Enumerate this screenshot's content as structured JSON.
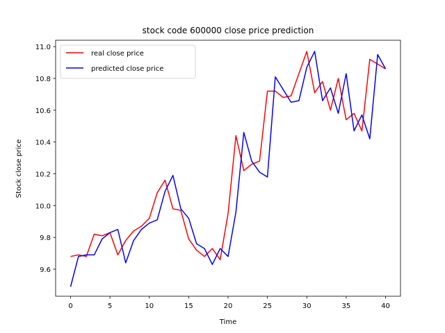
{
  "chart_data": {
    "type": "line",
    "title": "stock code 600000 close price prediction",
    "xlabel": "Time",
    "ylabel": "Stock close price",
    "xlim": [
      -1.9,
      41.9
    ],
    "ylim": [
      9.43,
      11.04
    ],
    "x_ticks": [
      0,
      5,
      10,
      15,
      20,
      25,
      30,
      35,
      40
    ],
    "y_ticks": [
      9.6,
      9.8,
      10.0,
      10.2,
      10.4,
      10.6,
      10.8,
      11.0
    ],
    "x_tick_labels": [
      "0",
      "5",
      "10",
      "15",
      "20",
      "25",
      "30",
      "35",
      "40"
    ],
    "y_tick_labels": [
      "9.6",
      "9.8",
      "10.0",
      "10.2",
      "10.4",
      "10.6",
      "10.8",
      "11.0"
    ],
    "grid": false,
    "legend_position": "upper-left",
    "x": [
      0,
      1,
      2,
      3,
      4,
      5,
      6,
      7,
      8,
      9,
      10,
      11,
      12,
      13,
      14,
      15,
      16,
      17,
      18,
      19,
      20,
      21,
      22,
      23,
      24,
      25,
      26,
      27,
      28,
      29,
      30,
      31,
      32,
      33,
      34,
      35,
      36,
      37,
      38,
      39,
      40
    ],
    "series": [
      {
        "name": "real close price",
        "color": "#ff0000",
        "values": [
          9.68,
          9.69,
          9.68,
          9.82,
          9.81,
          9.83,
          9.69,
          9.78,
          9.84,
          9.87,
          9.92,
          10.08,
          10.16,
          9.98,
          9.97,
          9.79,
          9.72,
          9.68,
          9.73,
          9.66,
          9.95,
          10.44,
          10.22,
          10.26,
          10.28,
          10.72,
          10.72,
          10.68,
          10.69,
          10.83,
          10.97,
          10.71,
          10.78,
          10.6,
          10.8,
          10.54,
          10.58,
          10.47,
          10.92,
          10.89,
          10.86
        ]
      },
      {
        "name": "predicted close price",
        "color": "#0000ff",
        "values": [
          9.49,
          9.68,
          9.69,
          9.69,
          9.79,
          9.83,
          9.85,
          9.64,
          9.78,
          9.85,
          9.89,
          9.91,
          10.09,
          10.19,
          9.98,
          9.92,
          9.76,
          9.73,
          9.63,
          9.73,
          9.68,
          9.96,
          10.46,
          10.28,
          10.21,
          10.18,
          10.81,
          10.73,
          10.65,
          10.66,
          10.87,
          10.97,
          10.66,
          10.74,
          10.58,
          10.83,
          10.47,
          10.57,
          10.42,
          10.95,
          10.86
        ]
      }
    ]
  }
}
